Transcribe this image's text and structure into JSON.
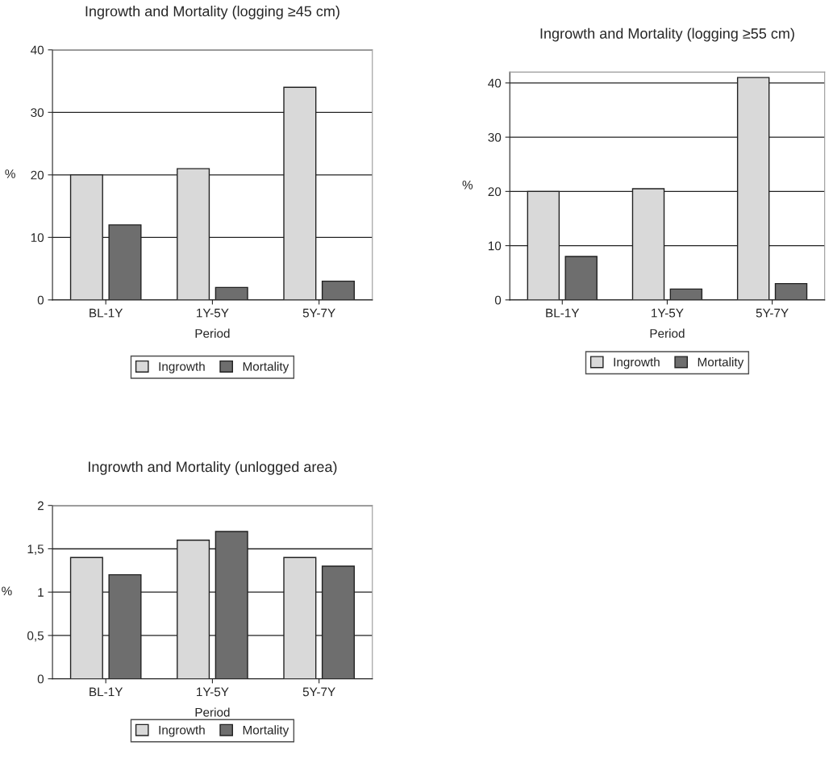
{
  "chart_data": [
    {
      "type": "bar",
      "title": "Ingrowth and Mortality (logging ≥45 cm)",
      "xlabel": "Period",
      "ylabel": "%",
      "categories": [
        "BL-1Y",
        "1Y-5Y",
        "5Y-7Y"
      ],
      "series": [
        {
          "name": "Ingrowth",
          "color": "#d9d9d9",
          "values": [
            20,
            21,
            34
          ]
        },
        {
          "name": "Mortality",
          "color": "#6e6e6e",
          "values": [
            12,
            2,
            3
          ]
        }
      ],
      "ylim": [
        0,
        40
      ],
      "yticks": [
        0,
        10,
        20,
        30,
        40
      ],
      "grid": "y",
      "legend": "bottom"
    },
    {
      "type": "bar",
      "title": "Ingrowth and Mortality (logging ≥55 cm)",
      "xlabel": "Period",
      "ylabel": "%",
      "categories": [
        "BL-1Y",
        "1Y-5Y",
        "5Y-7Y"
      ],
      "series": [
        {
          "name": "Ingrowth",
          "color": "#d9d9d9",
          "values": [
            20,
            20.5,
            41
          ]
        },
        {
          "name": "Mortality",
          "color": "#6e6e6e",
          "values": [
            8,
            2,
            3
          ]
        }
      ],
      "ylim": [
        0,
        42
      ],
      "yticks": [
        0,
        10,
        20,
        30,
        40
      ],
      "grid": "y",
      "legend": "bottom"
    },
    {
      "type": "bar",
      "title": "Ingrowth and Mortality (unlogged area)",
      "xlabel": "Period",
      "ylabel": "%",
      "categories": [
        "BL-1Y",
        "1Y-5Y",
        "5Y-7Y"
      ],
      "series": [
        {
          "name": "Ingrowth",
          "color": "#d9d9d9",
          "values": [
            1.4,
            1.6,
            1.4
          ]
        },
        {
          "name": "Mortality",
          "color": "#6e6e6e",
          "values": [
            1.2,
            1.7,
            1.3
          ]
        }
      ],
      "ylim": [
        0,
        2
      ],
      "yticks": [
        0,
        {
          "value": 0.5,
          "label": "0,5"
        },
        1,
        {
          "value": 1.5,
          "label": "1,5"
        },
        2
      ],
      "grid": "y",
      "legend": "bottom"
    }
  ]
}
